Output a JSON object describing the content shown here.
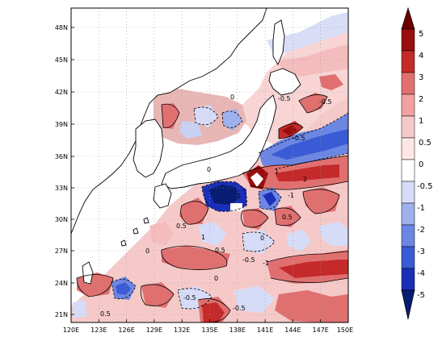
{
  "map": {
    "lat_ticks": [
      "48N",
      "45N",
      "42N",
      "39N",
      "36N",
      "33N",
      "30N",
      "27N",
      "24N",
      "21N"
    ],
    "lon_ticks": [
      "120E",
      "123E",
      "126E",
      "129E",
      "132E",
      "135E",
      "138E",
      "141E",
      "144E",
      "147E",
      "150E"
    ],
    "contour_labels": [
      "0",
      "0.5",
      "1",
      "2",
      "-0.5",
      "-1"
    ]
  },
  "colorbar": {
    "labels": [
      "5",
      "4",
      "3",
      "2",
      "1",
      "0.5",
      "0",
      "-0.5",
      "-1",
      "-2",
      "-3",
      "-4",
      "-5"
    ],
    "colors": [
      "#f2c7c7",
      "#ffe6e6",
      "#ffffff",
      "#d6dcf7",
      "#9fb0ee",
      "#6c86e3",
      "#3a5ad6",
      "#1a2fb8",
      "#081c73",
      "#ffffff",
      "#e07070",
      "#c42a2a",
      "#9a0d0d",
      "#6e0000"
    ]
  }
}
